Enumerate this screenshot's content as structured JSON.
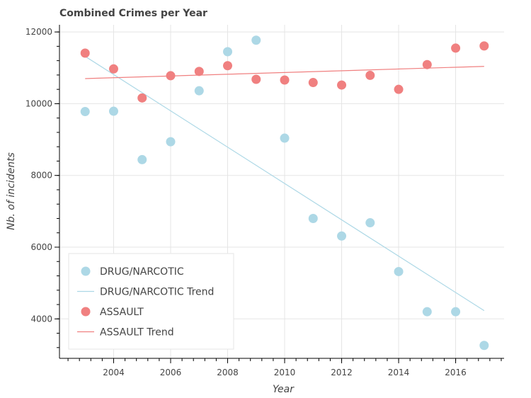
{
  "chart_data": {
    "type": "scatter",
    "title": "Combined Crimes per Year",
    "xlabel": "Year",
    "ylabel": "Nb. of incidents",
    "xlim": [
      2002.1,
      2017.7
    ],
    "ylim": [
      2900,
      12200
    ],
    "x_ticks": [
      2004,
      2006,
      2008,
      2010,
      2012,
      2014,
      2016
    ],
    "y_ticks": [
      4000,
      6000,
      8000,
      10000,
      12000
    ],
    "grid": true,
    "legend_position": "bottom-left",
    "series": [
      {
        "name": "DRUG/NARCOTIC",
        "color": "#add8e6",
        "kind": "scatter",
        "x": [
          2003,
          2004,
          2005,
          2006,
          2007,
          2008,
          2009,
          2010,
          2011,
          2012,
          2013,
          2014,
          2015,
          2016,
          2017
        ],
        "y": [
          9780,
          9790,
          8440,
          8940,
          10360,
          11450,
          11770,
          9040,
          6800,
          6310,
          6680,
          5320,
          4200,
          4200,
          3260
        ]
      },
      {
        "name": "DRUG/NARCOTIC Trend",
        "color": "#add8e6",
        "kind": "line",
        "x": [
          2003,
          2017
        ],
        "y": [
          11320,
          4230
        ]
      },
      {
        "name": "ASSAULT",
        "color": "#f08080",
        "kind": "scatter",
        "x": [
          2003,
          2004,
          2005,
          2006,
          2007,
          2008,
          2009,
          2010,
          2011,
          2012,
          2013,
          2014,
          2015,
          2016,
          2017
        ],
        "y": [
          11410,
          10970,
          10160,
          10780,
          10900,
          11060,
          10680,
          10660,
          10590,
          10520,
          10790,
          10400,
          11090,
          11550,
          11610
        ]
      },
      {
        "name": "ASSAULT Trend",
        "color": "#f08080",
        "kind": "line",
        "x": [
          2003,
          2017
        ],
        "y": [
          10700,
          11040
        ]
      }
    ]
  }
}
